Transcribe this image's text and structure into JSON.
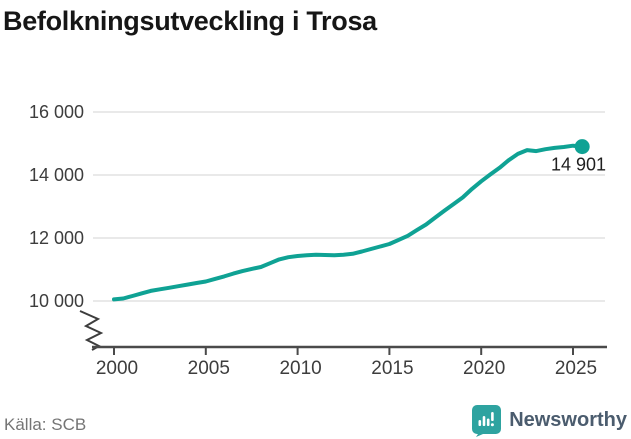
{
  "page": {
    "background": "#ffffff"
  },
  "chart_data": {
    "type": "line",
    "title": "Befolkningsutveckling i Trosa",
    "x": [
      2000,
      2000.5,
      2001,
      2001.5,
      2002,
      2002.5,
      2003,
      2003.5,
      2004,
      2004.5,
      2005,
      2005.5,
      2006,
      2006.5,
      2007,
      2007.5,
      2008,
      2008.5,
      2009,
      2009.5,
      2010,
      2010.5,
      2011,
      2011.5,
      2012,
      2012.5,
      2013,
      2013.5,
      2014,
      2014.5,
      2015,
      2015.5,
      2016,
      2016.5,
      2017,
      2017.5,
      2018,
      2018.5,
      2019,
      2019.5,
      2020,
      2020.5,
      2021,
      2021.5,
      2022,
      2022.5,
      2023,
      2023.5,
      2024,
      2024.5,
      2025,
      2025.5
    ],
    "y": [
      10050,
      10080,
      10160,
      10240,
      10320,
      10370,
      10420,
      10470,
      10520,
      10570,
      10620,
      10700,
      10780,
      10870,
      10950,
      11020,
      11080,
      11200,
      11320,
      11390,
      11430,
      11450,
      11470,
      11460,
      11450,
      11470,
      11500,
      11570,
      11650,
      11730,
      11810,
      11940,
      12070,
      12250,
      12430,
      12650,
      12870,
      13080,
      13290,
      13560,
      13800,
      14020,
      14230,
      14470,
      14670,
      14790,
      14760,
      14820,
      14860,
      14890,
      14930,
      14901
    ],
    "x_ticks": {
      "values": [
        2000,
        2005,
        2010,
        2015,
        2020,
        2025
      ],
      "labels": [
        "2000",
        "2005",
        "2010",
        "2015",
        "2020",
        "2025"
      ]
    },
    "y_ticks": {
      "values": [
        10000,
        12000,
        14000,
        16000
      ],
      "labels": [
        "10 000",
        "12 000",
        "14 000",
        "16 000"
      ]
    },
    "ylim": [
      10000,
      16000
    ],
    "axis_broken_below": true,
    "grid": true,
    "legend": false,
    "xlabel": "",
    "ylabel": "",
    "end_point": {
      "value": 14901,
      "label": "14 901"
    },
    "line_color": "#0fa294",
    "grid_color": "#e2e2e2",
    "axis_color": "#4a4a4a",
    "tick_label_color": "#3d3d3d",
    "annotation_color": "#1f1f1f"
  },
  "footer": {
    "source": "Källa: SCB",
    "brand": "Newsworthy"
  },
  "icons": {
    "brand_logo": "newsworthy-speech-bubble-bar-chart",
    "axis_break": "y-axis-break-zigzag"
  },
  "colors": {
    "brand_teal": "#2ea3a0",
    "brand_text": "#4b5c6e",
    "title_text": "#161616",
    "source_text": "#757575"
  }
}
